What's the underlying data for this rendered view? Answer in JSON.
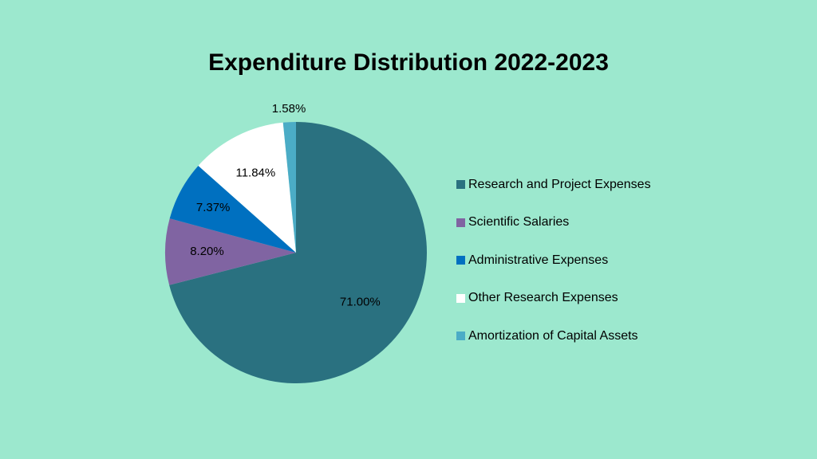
{
  "chart_data": {
    "type": "pie",
    "title": "Expenditure Distribution 2022-2023",
    "slices": [
      {
        "name": "Research and Project Expenses",
        "value": 71.0,
        "label": "71.00%",
        "color": "#2a7180"
      },
      {
        "name": "Scientific Salaries",
        "value": 8.2,
        "label": "8.20%",
        "color": "#8064a2"
      },
      {
        "name": "Administrative Expenses",
        "value": 7.37,
        "label": "7.37%",
        "color": "#0070c0"
      },
      {
        "name": "Other Research Expenses",
        "value": 11.84,
        "label": "11.84%",
        "color": "#ffffff"
      },
      {
        "name": "Amortization of Capital Assets",
        "value": 1.58,
        "label": "1.58%",
        "color": "#4bacc6"
      }
    ],
    "legend_position": "right"
  },
  "page": {
    "background": "#9ce8ce"
  }
}
